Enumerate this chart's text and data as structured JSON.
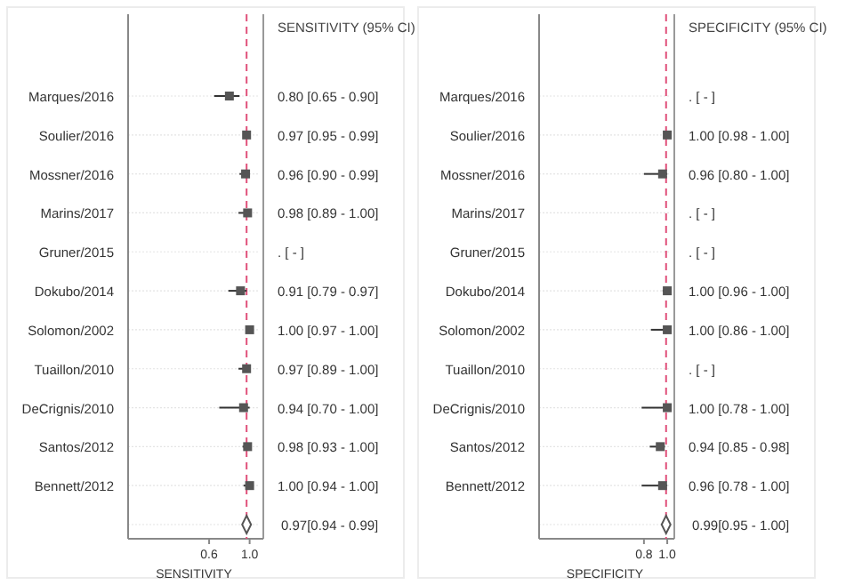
{
  "chart_data": [
    {
      "type": "scatter",
      "orientation": "horizontal",
      "annotations": [
        "SENSITIVITY (95% CI)"
      ],
      "xlabel": "SENSITIVITY",
      "categories": [
        "Marques/2016",
        "Soulier/2016",
        "Mossner/2016",
        "Marins/2017",
        "Gruner/2015",
        "Dokubo/2014",
        "Solomon/2002",
        "Tuaillon/2010",
        "DeCrignis/2010",
        "Santos/2012",
        "Bennett/2012",
        null
      ],
      "xlim": [
        -0.2,
        1.1
      ],
      "xticks": [
        0.6,
        {
          "value": 1.0,
          "label": "1.0"
        }
      ],
      "grid": "y",
      "ref_lines": [
        {
          "axis": "x",
          "value": 0.97,
          "color": "#e0507a",
          "line_style": "dashed"
        }
      ],
      "series": [
        {
          "color": "#555555",
          "marker": "square",
          "values": [
            0.8,
            0.97,
            0.96,
            0.98,
            null,
            0.91,
            1.0,
            0.97,
            0.94,
            0.98,
            1.0,
            null
          ],
          "errors": [
            [
              0.65,
              0.9
            ],
            [
              0.95,
              0.99
            ],
            [
              0.9,
              0.99
            ],
            [
              0.89,
              1.0
            ],
            null,
            [
              0.79,
              0.97
            ],
            [
              0.97,
              1.0
            ],
            [
              0.89,
              1.0
            ],
            [
              0.7,
              1.0
            ],
            [
              0.93,
              1.0
            ],
            [
              0.94,
              1.0
            ],
            null
          ],
          "value_labels": [
            "0.80 [0.65 - 0.90]",
            "0.97 [0.95 - 0.99]",
            "0.96 [0.90 - 0.99]",
            "0.98 [0.89 - 1.00]",
            ". [ - ]",
            "0.91 [0.79 - 0.97]",
            "1.00 [0.97 - 1.00]",
            "0.97 [0.89 - 1.00]",
            "0.94 [0.70 - 1.00]",
            "0.98 [0.93 - 1.00]",
            "1.00 [0.94 - 1.00]",
            null
          ]
        },
        {
          "color": "#555555",
          "marker": "diamond",
          "values": [
            null,
            null,
            null,
            null,
            null,
            null,
            null,
            null,
            null,
            null,
            null,
            0.97
          ],
          "errors": [
            null,
            null,
            null,
            null,
            null,
            null,
            null,
            null,
            null,
            null,
            null,
            [
              0.94,
              0.99
            ]
          ],
          "value_labels": [
            null,
            null,
            null,
            null,
            null,
            null,
            null,
            null,
            null,
            null,
            null,
            "0.97[0.94 - 0.99]"
          ]
        }
      ]
    },
    {
      "type": "scatter",
      "orientation": "horizontal",
      "annotations": [
        "SPECIFICITY (95% CI)"
      ],
      "xlabel": "SPECIFICITY",
      "categories": [
        "Marques/2016",
        "Soulier/2016",
        "Mossner/2016",
        "Marins/2017",
        "Gruner/2015",
        "Dokubo/2014",
        "Solomon/2002",
        "Tuaillon/2010",
        "DeCrignis/2010",
        "Santos/2012",
        "Bennett/2012",
        null
      ],
      "xlim": [
        -0.1,
        1.03
      ],
      "xticks": [
        0.8,
        {
          "value": 1.0,
          "label": "1.0"
        }
      ],
      "grid": "y",
      "ref_lines": [
        {
          "axis": "x",
          "value": 0.99,
          "color": "#e0507a",
          "line_style": "dashed"
        }
      ],
      "series": [
        {
          "color": "#555555",
          "marker": "square",
          "values": [
            null,
            1.0,
            0.96,
            null,
            null,
            1.0,
            1.0,
            null,
            1.0,
            0.94,
            0.96,
            null
          ],
          "errors": [
            null,
            [
              0.98,
              1.0
            ],
            [
              0.8,
              1.0
            ],
            null,
            null,
            [
              0.96,
              1.0
            ],
            [
              0.86,
              1.0
            ],
            null,
            [
              0.78,
              1.0
            ],
            [
              0.85,
              0.98
            ],
            [
              0.78,
              1.0
            ],
            null
          ],
          "value_labels": [
            ". [ - ]",
            "1.00 [0.98 - 1.00]",
            "0.96 [0.80 - 1.00]",
            ". [ - ]",
            ". [ - ]",
            "1.00 [0.96 - 1.00]",
            "1.00 [0.86 - 1.00]",
            ". [ - ]",
            "1.00 [0.78 - 1.00]",
            "0.94 [0.85 - 0.98]",
            "0.96 [0.78 - 1.00]",
            null
          ]
        },
        {
          "color": "#555555",
          "marker": "diamond",
          "values": [
            null,
            null,
            null,
            null,
            null,
            null,
            null,
            null,
            null,
            null,
            null,
            0.99
          ],
          "errors": [
            null,
            null,
            null,
            null,
            null,
            null,
            null,
            null,
            null,
            null,
            null,
            [
              0.95,
              1.0
            ]
          ],
          "value_labels": [
            null,
            null,
            null,
            null,
            null,
            null,
            null,
            null,
            null,
            null,
            null,
            "0.99[0.95 - 1.00]"
          ]
        }
      ]
    }
  ]
}
